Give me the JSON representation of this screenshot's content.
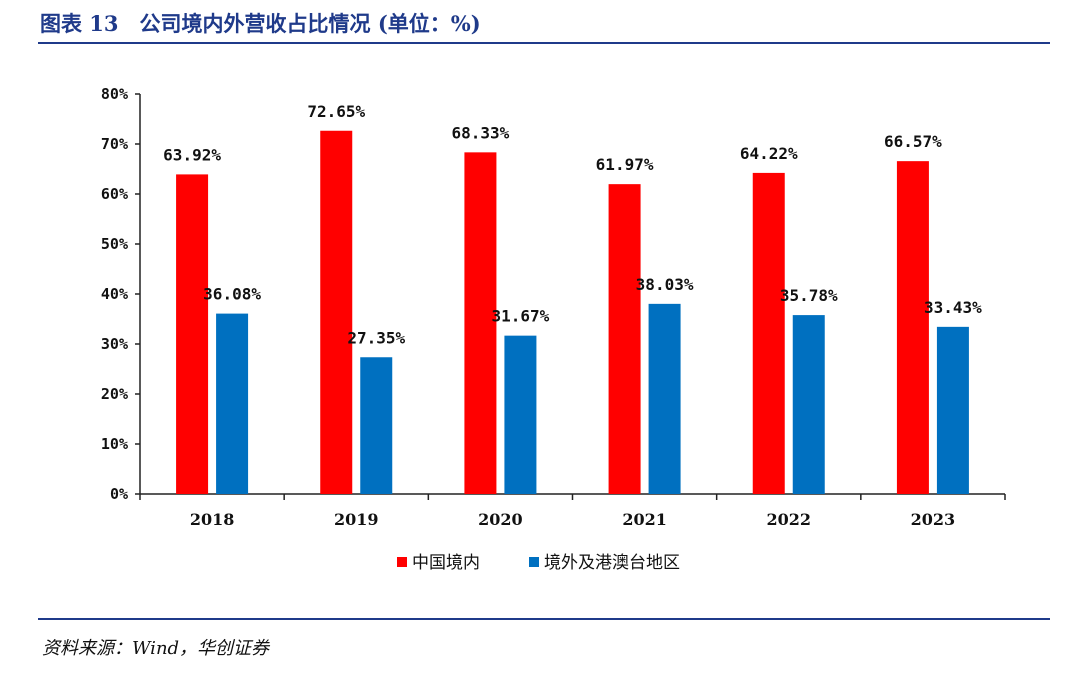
{
  "header": {
    "title": "图表 13　公司境内外营收占比情况 (单位：%)"
  },
  "footer": {
    "source": "资料来源：Wind，华创证券"
  },
  "chart_data": {
    "type": "bar",
    "categories": [
      "2018",
      "2019",
      "2020",
      "2021",
      "2022",
      "2023"
    ],
    "series": [
      {
        "name": "中国境内",
        "color": "#ff0000",
        "values": [
          63.92,
          72.65,
          68.33,
          61.97,
          64.22,
          66.57
        ],
        "labels": [
          "63.92%",
          "72.65%",
          "68.33%",
          "61.97%",
          "64.22%",
          "66.57%"
        ]
      },
      {
        "name": "境外及港澳台地区",
        "color": "#0070c0",
        "values": [
          36.08,
          27.35,
          31.67,
          38.03,
          35.78,
          33.43
        ],
        "labels": [
          "36.08%",
          "27.35%",
          "31.67%",
          "38.03%",
          "35.78%",
          "33.43%"
        ]
      }
    ],
    "yticks": [
      "0%",
      "10%",
      "20%",
      "30%",
      "40%",
      "50%",
      "60%",
      "70%",
      "80%"
    ],
    "ylim": [
      0,
      80
    ],
    "grid": false,
    "legend_position": "bottom"
  }
}
